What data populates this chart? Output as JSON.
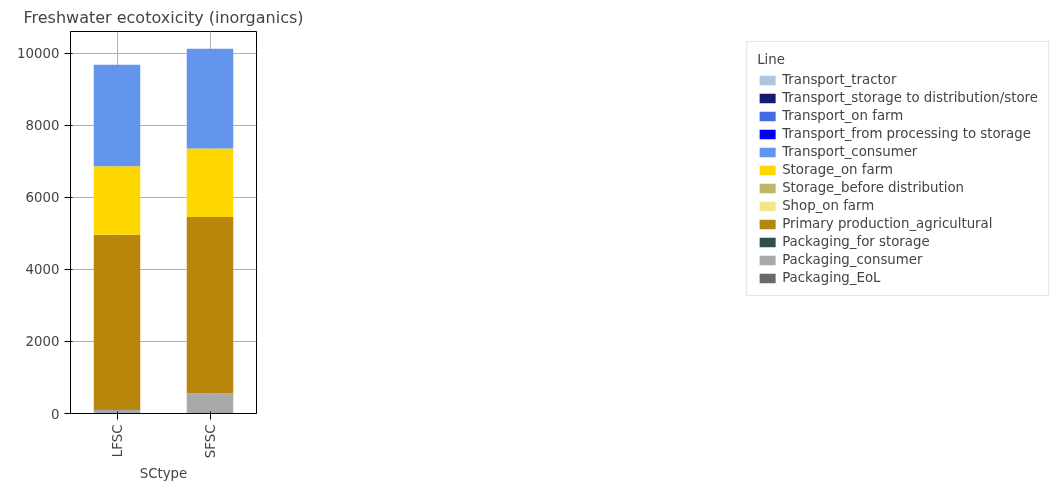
{
  "chart_data": {
    "type": "bar",
    "stacked": true,
    "title": "Freshwater ecotoxicity (inorganics)",
    "xlabel": "SCtype",
    "legend_title": "Line",
    "categories": [
      "LFSC",
      "SFSC"
    ],
    "series": [
      {
        "name": "Packaging_EoL",
        "color": "#696969",
        "values": [
          0,
          0
        ]
      },
      {
        "name": "Packaging_consumer",
        "color": "#a9a9a9",
        "values": [
          100,
          560
        ]
      },
      {
        "name": "Packaging_for storage",
        "color": "#2f4f4f",
        "values": [
          0,
          0
        ]
      },
      {
        "name": "Primary production_agricultural",
        "color": "#b8860b",
        "values": [
          4860,
          4890
        ]
      },
      {
        "name": "Shop_on farm",
        "color": "#f0e68c",
        "values": [
          0,
          0
        ]
      },
      {
        "name": "Storage_before distribution",
        "color": "#bdb76b",
        "values": [
          0,
          0
        ]
      },
      {
        "name": "Storage_on farm",
        "color": "#ffd700",
        "values": [
          1900,
          1900
        ]
      },
      {
        "name": "Transport_consumer",
        "color": "#6495ed",
        "values": [
          2820,
          2770
        ]
      },
      {
        "name": "Transport_from processing to storage",
        "color": "#0000ff",
        "values": [
          0,
          0
        ]
      },
      {
        "name": "Transport_on farm",
        "color": "#4169e1",
        "values": [
          0,
          0
        ]
      },
      {
        "name": "Transport_storage to distribution/store",
        "color": "#191970",
        "values": [
          0,
          0
        ]
      },
      {
        "name": "Transport_tractor",
        "color": "#b0c4de",
        "values": [
          0,
          0
        ]
      }
    ],
    "ylim": [
      0,
      10600
    ],
    "yticks": [
      0,
      2000,
      4000,
      6000,
      8000,
      10000
    ],
    "grid": true,
    "legend": "right"
  }
}
